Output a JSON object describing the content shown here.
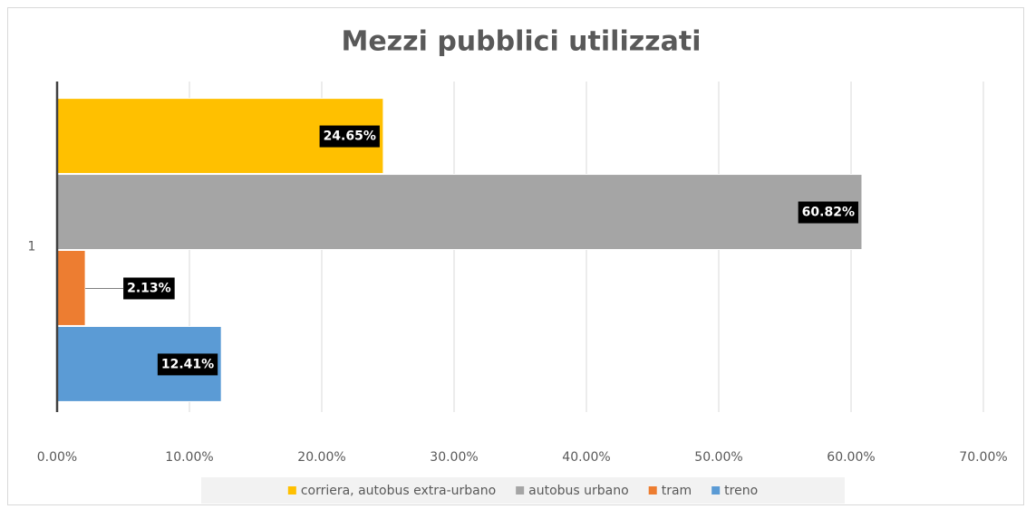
{
  "chart_data": {
    "type": "bar",
    "orientation": "horizontal",
    "title": "Mezzi pubblici utilizzati",
    "categories": [
      "1"
    ],
    "series": [
      {
        "name": "corriera, autobus extra-urbano",
        "color": "#FFC000",
        "values": [
          24.65
        ],
        "value_labels": [
          "24.65%"
        ]
      },
      {
        "name": "autobus urbano",
        "color": "#A5A5A5",
        "values": [
          60.82
        ],
        "value_labels": [
          "60.82%"
        ]
      },
      {
        "name": "tram",
        "color": "#ED7D31",
        "values": [
          2.13
        ],
        "value_labels": [
          "2.13%"
        ]
      },
      {
        "name": "treno",
        "color": "#5B9BD5",
        "values": [
          12.41
        ],
        "value_labels": [
          "12.41%"
        ]
      }
    ],
    "xlim": [
      0,
      70
    ],
    "xticks": [
      {
        "value": 0,
        "label": "0.00%"
      },
      {
        "value": 10,
        "label": "10.00%"
      },
      {
        "value": 20,
        "label": "20.00%"
      },
      {
        "value": 30,
        "label": "30.00%"
      },
      {
        "value": 40,
        "label": "40.00%"
      },
      {
        "value": 50,
        "label": "50.00%"
      },
      {
        "value": 60,
        "label": "60.00%"
      },
      {
        "value": 70,
        "label": "70.00%"
      }
    ],
    "grid": true,
    "legend": "bottom"
  }
}
